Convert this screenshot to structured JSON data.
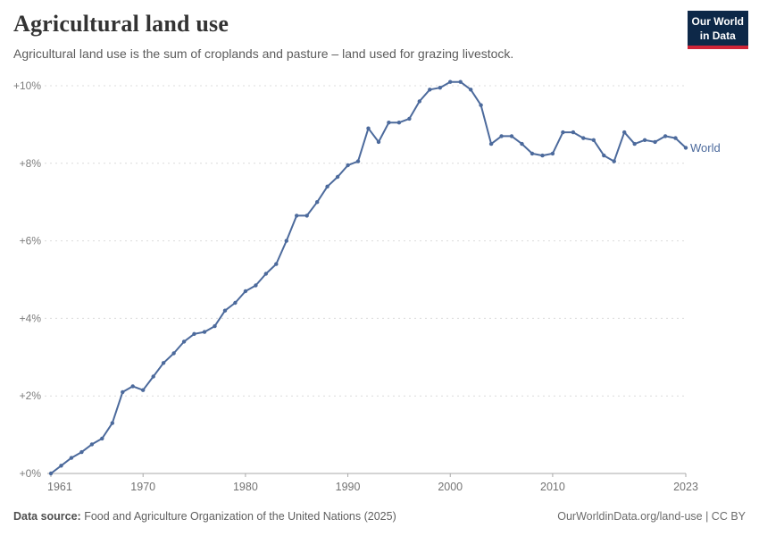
{
  "header": {
    "title": "Agricultural land use",
    "subtitle": "Agricultural land use is the sum of croplands and pasture – land used for grazing livestock.",
    "logo": {
      "line1": "Our World",
      "line2": "in Data",
      "bg_color": "#0d2848",
      "accent_color": "#cf2437"
    }
  },
  "chart_data": {
    "type": "line",
    "title": "Agricultural land use",
    "xlabel": "",
    "ylabel": "",
    "unit": "% change",
    "grid": "horizontal-dashed",
    "legend_position": "end-of-line",
    "xlim": [
      1961,
      2023
    ],
    "ylim": [
      0,
      10.5
    ],
    "x_ticks": [
      1961,
      1970,
      1980,
      1990,
      2000,
      2010,
      2023
    ],
    "y_ticks": [
      0,
      2,
      4,
      6,
      8,
      10
    ],
    "y_tick_labels": [
      "+0%",
      "+2%",
      "+4%",
      "+6%",
      "+8%",
      "+10%"
    ],
    "x": [
      1961,
      1962,
      1963,
      1964,
      1965,
      1966,
      1967,
      1968,
      1969,
      1970,
      1971,
      1972,
      1973,
      1974,
      1975,
      1976,
      1977,
      1978,
      1979,
      1980,
      1981,
      1982,
      1983,
      1984,
      1985,
      1986,
      1987,
      1988,
      1989,
      1990,
      1991,
      1992,
      1993,
      1994,
      1995,
      1996,
      1997,
      1998,
      1999,
      2000,
      2001,
      2002,
      2003,
      2004,
      2005,
      2006,
      2007,
      2008,
      2009,
      2010,
      2011,
      2012,
      2013,
      2014,
      2015,
      2016,
      2017,
      2018,
      2019,
      2020,
      2021,
      2022,
      2023
    ],
    "series": [
      {
        "name": "World",
        "color": "#4c6a9c",
        "values": [
          0.0,
          0.2,
          0.4,
          0.55,
          0.75,
          0.9,
          1.3,
          2.1,
          2.25,
          2.15,
          2.5,
          2.85,
          3.1,
          3.4,
          3.6,
          3.65,
          3.8,
          4.2,
          4.4,
          4.7,
          4.85,
          5.15,
          5.4,
          6.0,
          6.65,
          6.65,
          7.0,
          7.4,
          7.65,
          7.95,
          8.05,
          8.9,
          8.55,
          9.05,
          9.05,
          9.15,
          9.6,
          9.9,
          9.95,
          10.1,
          10.1,
          9.9,
          9.5,
          8.5,
          8.7,
          8.7,
          8.5,
          8.25,
          8.2,
          8.25,
          8.8,
          8.8,
          8.65,
          8.6,
          8.2,
          8.05,
          8.8,
          8.5,
          8.6,
          8.55,
          8.7,
          8.65,
          8.4
        ]
      }
    ]
  },
  "footer": {
    "datasource_label": "Data source:",
    "datasource_text": "Food and Agriculture Organization of the United Nations (2025)",
    "credit": "OurWorldinData.org/land-use | CC BY"
  }
}
